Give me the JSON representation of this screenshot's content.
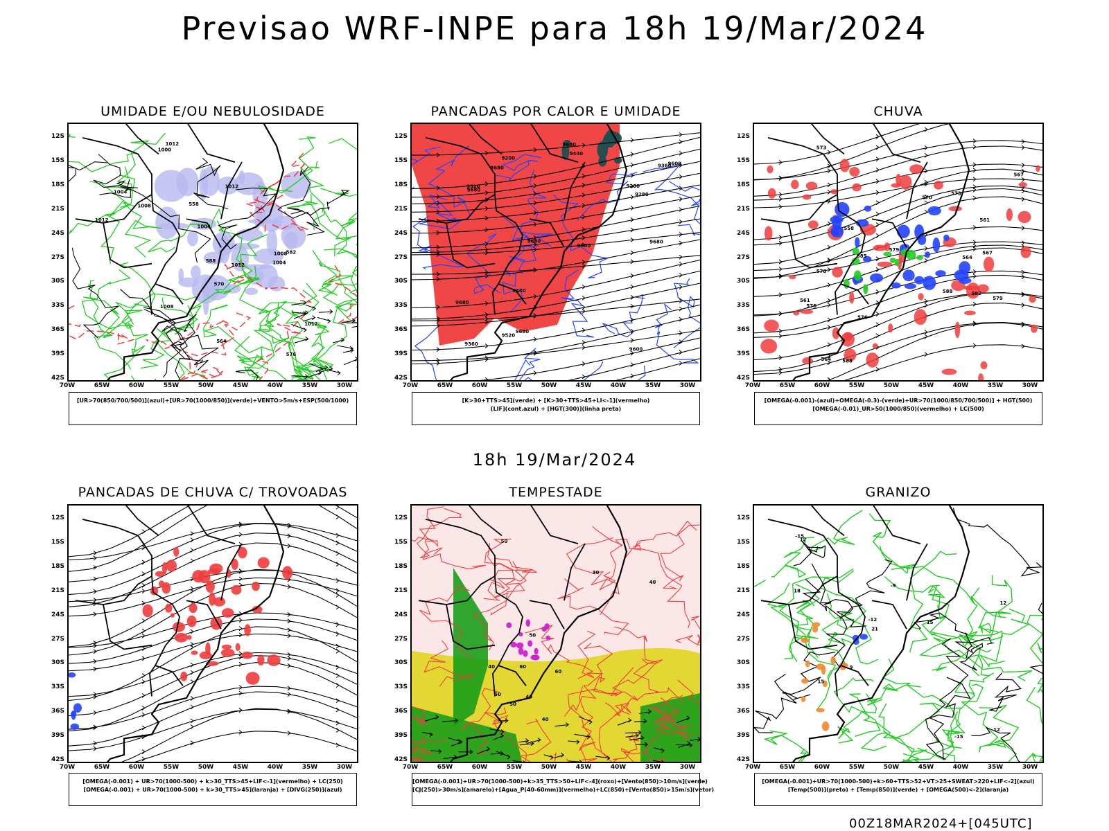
{
  "title": "Previsao WRF-INPE  para 18h 19/Mar/2024",
  "subtitle": "18h 19/Mar/2024",
  "footer": "00Z18MAR2024+[045UTC]",
  "lat_labels": [
    "12S",
    "15S",
    "18S",
    "21S",
    "24S",
    "27S",
    "30S",
    "33S",
    "36S",
    "39S",
    "42S"
  ],
  "lon_labels": [
    "70W",
    "65W",
    "60W",
    "55W",
    "50W",
    "45W",
    "40W",
    "35W",
    "30W"
  ],
  "colors": {
    "humid_blue": "#b8b8f0",
    "green": "#22cc22",
    "red": "#f03c3c",
    "darkteal": "#1f4f4f",
    "blue": "#2244ff",
    "yellow": "#e2d62a",
    "darkgreen": "#1a9e1a",
    "pink": "#fbe7e7",
    "orange": "#f08a2c",
    "magenta": "#cc22cc"
  },
  "panels": [
    {
      "title": "UMIDADE E/OU NEBULOSIDADE",
      "legend": [
        "[UR>70(850/700/500)](azul)+[UR>70(1000/850)](verde)+VENTO>5m/s+ESP(500/1000)"
      ],
      "contour_labels": [
        "1008",
        "1004",
        "1004",
        "1000",
        "1008",
        "1012",
        "1012",
        "1012",
        "1012",
        "1004",
        "1012",
        "1008",
        "576",
        "582",
        "570",
        "564",
        "558",
        "588"
      ]
    },
    {
      "title": "PANCADAS POR CALOR E UMIDADE",
      "legend": [
        "[K>30+TTS>45](verde) + [K>30+TTS>45+LI<-1](vermelho)",
        "[LIF](cont.azul) + [HGT(300)](linha preta)"
      ],
      "contour_labels": [
        "9680",
        "9680",
        "9680",
        "9600",
        "9680",
        "9680",
        "9600",
        "9520",
        "9440",
        "9360",
        "9280",
        "9200",
        "9520",
        "9600",
        "9680",
        "9440",
        "9360",
        "9280",
        "9680"
      ]
    },
    {
      "title": "CHUVA",
      "legend": [
        "[OMEGA(-0.001)-(azul)+OMEGA(-0.3)-(verde)+UR>70(1000/850/700/500)] + HGT(500)",
        "[OMEGA(-0.01)_UR>50(1000/850)(vermelho) + LC(500)"
      ],
      "contour_labels": [
        "588",
        "588",
        "585",
        "576",
        "579",
        "573",
        "570",
        "567",
        "564",
        "561",
        "558",
        "582",
        "579",
        "576",
        "573",
        "570",
        "567",
        "564",
        "561"
      ]
    },
    {
      "title": "PANCADAS DE CHUVA C/ TROVOADAS",
      "legend": [
        "[OMEGA(-0.001) + UR>70(1000-500) + k>30_TTS>45+LIF<-1](vermelho) + LC(250)",
        "[OMEGA(-0.001) + UR>70(1000-500) + k>30_TTS>45](laranja) + [DIVG(250)](azul)"
      ],
      "contour_labels": []
    },
    {
      "title": "TEMPESTADE",
      "legend": [
        "[OMEGA(-0.001)+UR>70(1000-500)+k>35_TTS>50+LIF<-4](roxo)+[Vento(850)>10m/s](verde)",
        "[CJ(250)>30m/s](amarelo)+[Agua_P(40-60mm)](vermelho)+LC(850)+[Vento(850)>15m/s](vetor)"
      ],
      "contour_labels": [
        "60",
        "50",
        "40",
        "50",
        "60",
        "40",
        "50",
        "40",
        "30",
        "40",
        "50"
      ]
    },
    {
      "title": "GRANIZO",
      "legend": [
        "[OMEGA(-0.001)+UR>70(1000-500)+k>60+TTS>52+VT>25+SWEAT>220+LIF<-2](azul)",
        "[Temp(500)](preto) + [Temp(850)](verde) + [OMEGA(500)<-2](laranja)"
      ],
      "contour_labels": [
        "21",
        "18",
        "15",
        "12",
        "9",
        "-9",
        "-12",
        "-15",
        "12",
        "15",
        "-15",
        "-12"
      ]
    }
  ]
}
